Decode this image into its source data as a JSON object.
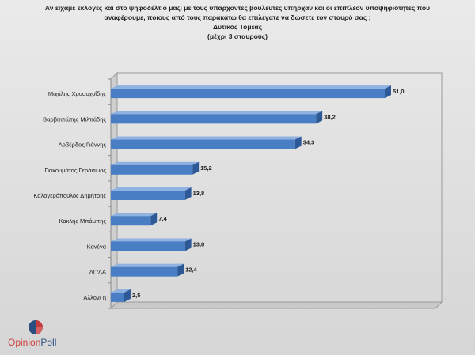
{
  "title_lines": [
    "Αν είχαμε εκλογές και στο ψηφοδέλτιο μαζί με τους υπάρχοντες βουλευτές υπήρχαν και οι επιπλέον υποψηφιότητες που",
    "αναφέρουμε, ποιους από τους παρακάτω θα επιλέγατε να δώσετε τον σταυρό σας ;",
    "Δυτικός Τομέας",
    "(μέχρι 3 σταυρούς)"
  ],
  "logo": {
    "part1": "Opinion",
    "part2": "Poll"
  },
  "chart_data": {
    "type": "bar",
    "orientation": "horizontal",
    "categories": [
      "Μιχάλης Χρυσοχοΐδης",
      "Βαρβιτσιώτης Μιλτιάδης",
      "Λοβέρδος Γιάννης",
      "Γιακουμάτος Γεράσιμος",
      "Καλογερόπουλος Δημήτρης",
      "Κακλής Μπάμπης",
      "Κανένα",
      "ΔΓ/ΔΑ",
      "Άλλον/ η"
    ],
    "values": [
      51.0,
      38.2,
      34.3,
      15.2,
      13.8,
      7.4,
      13.8,
      12.4,
      2.5
    ],
    "value_labels": [
      "51,0",
      "38,2",
      "34,3",
      "15,2",
      "13,8",
      "7,4",
      "13,8",
      "12,4",
      "2,5"
    ],
    "xlim": [
      0,
      60
    ],
    "grid": false,
    "colors": {
      "bar_front": "#4a7ec4",
      "bar_top": "#8fb2e0",
      "bar_side": "#2d5a96"
    }
  }
}
